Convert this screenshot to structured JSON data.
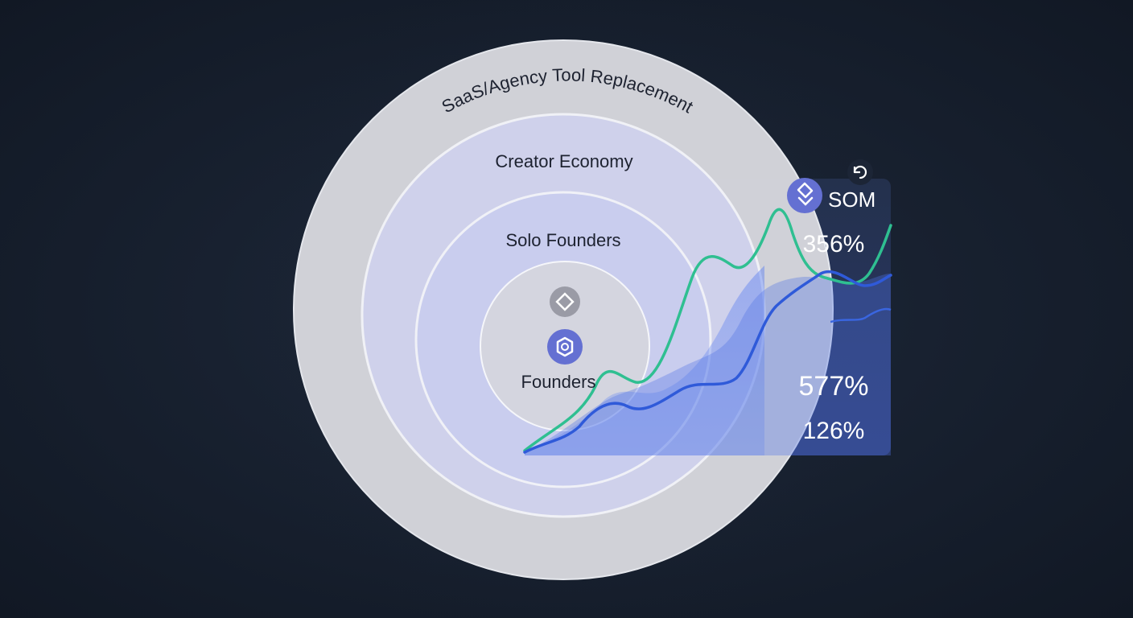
{
  "rings": {
    "outer_label": "SaaS/Agency Tool Replacement",
    "ring2_label": "Creator Economy",
    "ring3_label": "Solo Founders",
    "core_label": "Founders"
  },
  "panel": {
    "title": "SOM",
    "stat_top": "356%",
    "stat_mid": "577%",
    "stat_bottom": "126%"
  },
  "icons": {
    "core_top": "diamond-icon",
    "core_main": "gear-icon",
    "panel_badge": "tag-icon",
    "panel_corner": "refresh-icon"
  },
  "colors": {
    "background": "#182130",
    "ring_outer": "#d5d6dd",
    "ring_mid": "#cdd0ec",
    "ring_inner": "#c7cbee",
    "core": "#d2d3de",
    "accent_blue": "#2f5ad9",
    "accent_teal": "#2fbf91",
    "icon_purple": "#6470d2",
    "icon_gray": "#9a9ba6",
    "panel": "#1f2b4a"
  }
}
